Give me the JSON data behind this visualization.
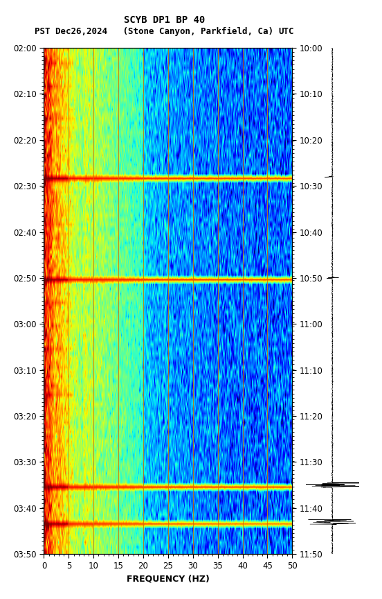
{
  "title_line1": "SCYB DP1 BP 40",
  "title_line2_left": "PST",
  "title_line2_mid": "Dec26,2024   (Stone Canyon, Parkfield, Ca)",
  "title_line2_right": "UTC",
  "xlabel": "FREQUENCY (HZ)",
  "freq_min": 0,
  "freq_max": 50,
  "ytick_labels_left": [
    "02:00",
    "02:10",
    "02:20",
    "02:30",
    "02:40",
    "02:50",
    "03:00",
    "03:10",
    "03:20",
    "03:30",
    "03:40",
    "03:50"
  ],
  "ytick_labels_right": [
    "10:00",
    "10:10",
    "10:20",
    "10:30",
    "10:40",
    "10:50",
    "11:00",
    "11:10",
    "11:20",
    "11:30",
    "11:40",
    "11:50"
  ],
  "xtick_positions": [
    0,
    5,
    10,
    15,
    20,
    25,
    30,
    35,
    40,
    45,
    50
  ],
  "vline_color": "#cc7700",
  "vline_positions": [
    5,
    10,
    15,
    20,
    25,
    30,
    35,
    40,
    45
  ],
  "colormap": "jet",
  "fig_width": 5.52,
  "fig_height": 8.64,
  "title_fontsize": 10,
  "tick_fontsize": 8.5,
  "label_fontsize": 9,
  "n_time": 110,
  "n_freq": 500,
  "event_rows": [
    28,
    50,
    95,
    103
  ],
  "event_rows_partial": [
    3,
    8,
    15,
    38,
    55,
    65,
    75
  ],
  "wave_event_rows": [
    95,
    103
  ]
}
